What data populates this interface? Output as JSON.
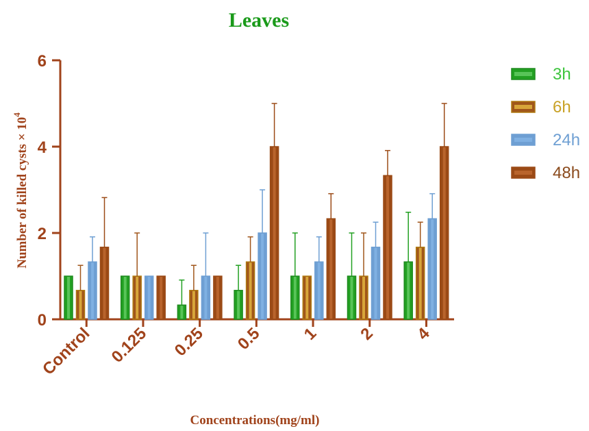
{
  "chart_data": {
    "type": "bar",
    "title": "Leaves",
    "xlabel": "Concentrations(mg/ml)",
    "ylabel_main": "Number of killed cysts × 10",
    "ylabel_exp": "4",
    "ylim": [
      0,
      6
    ],
    "yticks": [
      "0",
      "2",
      "4",
      "6"
    ],
    "categories": [
      "Control",
      "0.125",
      "0.25",
      "0.5",
      "1",
      "2",
      "4"
    ],
    "series": [
      {
        "name": "3h",
        "values": [
          1,
          1,
          0.33,
          0.67,
          1,
          1,
          1.33
        ],
        "errors": [
          0,
          0,
          0.58,
          0.58,
          1,
          1,
          1.15
        ]
      },
      {
        "name": "6h",
        "values": [
          0.67,
          1,
          0.67,
          1.33,
          1,
          1,
          1.67
        ],
        "errors": [
          0.58,
          1,
          0.58,
          0.58,
          0,
          1,
          0.58
        ]
      },
      {
        "name": "24h",
        "values": [
          1.33,
          1,
          1,
          2,
          1.33,
          1.67,
          2.33
        ],
        "errors": [
          0.58,
          0,
          1,
          1,
          0.58,
          0.58,
          0.58
        ]
      },
      {
        "name": "48h",
        "values": [
          1.67,
          1,
          1,
          4,
          2.33,
          3.33,
          4
        ],
        "errors": [
          1.15,
          0,
          0,
          1,
          0.58,
          0.58,
          1
        ]
      }
    ],
    "legend_position": "right",
    "grid": false
  },
  "colors": {
    "axis": "#a0431b",
    "title": "#1a9a1a",
    "series_fill": [
      "#22a022",
      "#a0561b",
      "#6e9fd3",
      "#9b4a16"
    ],
    "series_stroke": [
      "#1f8a1f",
      "#b07a10",
      "#6e9fd3",
      "#9b4a16"
    ],
    "series_inner": [
      "#58c458",
      "#d8a63a",
      "#7fb0e2",
      "#b9642c"
    ],
    "legend_text": [
      "#3ec43e",
      "#c9a227",
      "#6e9fd3",
      "#8a4a1c"
    ]
  }
}
